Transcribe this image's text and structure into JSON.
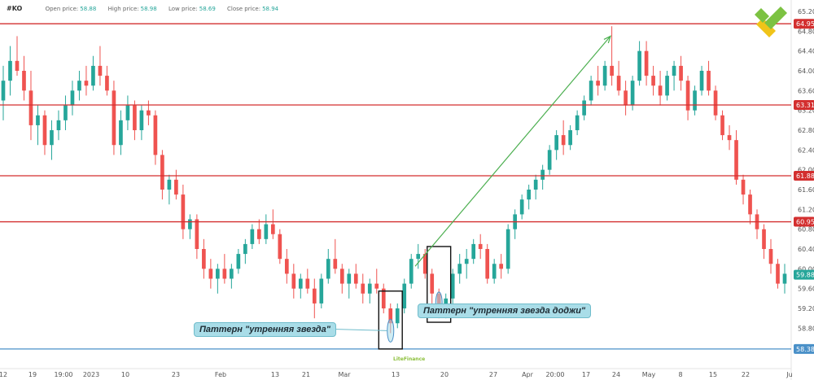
{
  "header": {
    "symbol": "#KO",
    "open_label": "Open price:",
    "open_value": "58.88",
    "high_label": "High price:",
    "high_value": "58.98",
    "low_label": "Low price:",
    "low_value": "58.69",
    "close_label": "Close price:",
    "close_value": "58.94"
  },
  "annotations": {
    "morning_star": "Паттерн \"утренняя звезда\"",
    "morning_star_doji": "Паттерн \"утренняя звезда доджи\""
  },
  "watermark": "LiteFinance",
  "chart_data": {
    "type": "candlestick",
    "ylim": [
      58.0,
      65.2
    ],
    "price_ticks": [
      58.8,
      59.2,
      59.6,
      60.0,
      60.4,
      60.8,
      61.2,
      61.6,
      62.0,
      62.4,
      62.8,
      63.2,
      63.6,
      64.0,
      64.4,
      64.8,
      65.2
    ],
    "x_labels": [
      "12",
      "19",
      "19:00",
      "2023",
      "10",
      "23",
      "Feb",
      "13",
      "21",
      "Mar",
      "13",
      "20",
      "27",
      "Apr",
      "20:00",
      "17",
      "24",
      "May",
      "8",
      "15",
      "22",
      "Ju"
    ],
    "horizontal_levels": [
      {
        "value": 64.95,
        "label": "64.95",
        "color": "#d32f2f"
      },
      {
        "value": 63.31,
        "label": "63.31",
        "color": "#d32f2f"
      },
      {
        "value": 61.88,
        "label": "61.88",
        "color": "#d32f2f"
      },
      {
        "value": 60.95,
        "label": "60.95",
        "color": "#d32f2f"
      },
      {
        "value": 58.38,
        "label": "58.38",
        "color": "#4a90c8"
      }
    ],
    "current_price": {
      "value": 59.88,
      "label": "59.88",
      "color": "#26a69a"
    },
    "colors": {
      "up": "#26a69a",
      "down": "#ef5350",
      "arrow": "#4caf50"
    },
    "trend_arrow": {
      "from_price": 60.05,
      "to_price": 64.7
    },
    "candles": [
      [
        63.4,
        64.1,
        63.0,
        63.8
      ],
      [
        63.8,
        64.5,
        63.5,
        64.2
      ],
      [
        64.2,
        64.7,
        63.9,
        64.0
      ],
      [
        64.0,
        64.3,
        63.4,
        63.6
      ],
      [
        63.6,
        64.0,
        62.6,
        62.9
      ],
      [
        62.9,
        63.3,
        62.5,
        63.1
      ],
      [
        63.1,
        63.2,
        62.3,
        62.5
      ],
      [
        62.5,
        63.0,
        62.2,
        62.8
      ],
      [
        62.8,
        63.2,
        62.6,
        63.0
      ],
      [
        63.0,
        63.5,
        62.8,
        63.3
      ],
      [
        63.3,
        63.8,
        63.1,
        63.6
      ],
      [
        63.6,
        64.0,
        63.4,
        63.8
      ],
      [
        63.8,
        64.1,
        63.5,
        63.7
      ],
      [
        63.7,
        64.3,
        63.6,
        64.1
      ],
      [
        64.1,
        64.5,
        63.7,
        63.9
      ],
      [
        63.9,
        64.1,
        63.5,
        63.6
      ],
      [
        63.6,
        63.8,
        62.3,
        62.5
      ],
      [
        62.5,
        63.2,
        62.3,
        63.0
      ],
      [
        63.0,
        63.5,
        62.8,
        63.3
      ],
      [
        63.3,
        63.4,
        62.6,
        62.8
      ],
      [
        62.8,
        63.3,
        62.6,
        63.2
      ],
      [
        63.2,
        63.4,
        62.9,
        63.1
      ],
      [
        63.1,
        63.2,
        62.1,
        62.3
      ],
      [
        62.3,
        62.4,
        61.4,
        61.6
      ],
      [
        61.6,
        61.9,
        61.3,
        61.8
      ],
      [
        61.8,
        62.0,
        61.4,
        61.5
      ],
      [
        61.5,
        61.7,
        60.6,
        60.8
      ],
      [
        60.8,
        61.1,
        60.6,
        61.0
      ],
      [
        61.0,
        61.1,
        60.2,
        60.4
      ],
      [
        60.4,
        60.6,
        59.8,
        60.0
      ],
      [
        60.0,
        60.2,
        59.6,
        59.8
      ],
      [
        59.8,
        60.1,
        59.5,
        60.0
      ],
      [
        60.0,
        60.3,
        59.7,
        59.8
      ],
      [
        59.8,
        60.1,
        59.6,
        60.0
      ],
      [
        60.0,
        60.4,
        59.9,
        60.3
      ],
      [
        60.3,
        60.6,
        60.1,
        60.5
      ],
      [
        60.5,
        60.9,
        60.4,
        60.8
      ],
      [
        60.8,
        61.0,
        60.5,
        60.6
      ],
      [
        60.6,
        61.1,
        60.5,
        60.9
      ],
      [
        60.9,
        61.2,
        60.6,
        60.7
      ],
      [
        60.7,
        60.8,
        60.1,
        60.2
      ],
      [
        60.2,
        60.4,
        59.7,
        59.9
      ],
      [
        59.9,
        60.1,
        59.4,
        59.6
      ],
      [
        59.6,
        59.9,
        59.4,
        59.8
      ],
      [
        59.8,
        60.0,
        59.5,
        59.6
      ],
      [
        59.6,
        59.8,
        59.0,
        59.3
      ],
      [
        59.3,
        59.9,
        59.2,
        59.8
      ],
      [
        59.8,
        60.4,
        59.7,
        60.2
      ],
      [
        60.2,
        60.6,
        59.9,
        60.0
      ],
      [
        60.0,
        60.1,
        59.5,
        59.7
      ],
      [
        59.7,
        60.0,
        59.4,
        59.9
      ],
      [
        59.9,
        60.1,
        59.6,
        59.7
      ],
      [
        59.7,
        59.9,
        59.3,
        59.5
      ],
      [
        59.5,
        59.8,
        59.3,
        59.7
      ],
      [
        59.7,
        60.0,
        59.5,
        59.6
      ],
      [
        59.6,
        59.7,
        59.1,
        59.2
      ],
      [
        59.2,
        59.3,
        58.7,
        58.9
      ],
      [
        58.9,
        59.3,
        58.8,
        59.2
      ],
      [
        59.2,
        59.8,
        59.1,
        59.7
      ],
      [
        59.7,
        60.3,
        59.6,
        60.2
      ],
      [
        60.2,
        60.5,
        60.0,
        60.3
      ],
      [
        60.3,
        60.4,
        59.8,
        59.9
      ],
      [
        59.9,
        60.0,
        59.3,
        59.5
      ],
      [
        59.5,
        59.6,
        59.0,
        59.1
      ],
      [
        59.1,
        59.5,
        59.0,
        59.4
      ],
      [
        59.4,
        60.0,
        59.3,
        59.9
      ],
      [
        59.9,
        60.3,
        59.7,
        60.1
      ],
      [
        60.1,
        60.4,
        59.8,
        60.2
      ],
      [
        60.2,
        60.6,
        60.1,
        60.5
      ],
      [
        60.5,
        60.7,
        60.2,
        60.4
      ],
      [
        60.4,
        60.5,
        59.7,
        59.8
      ],
      [
        59.8,
        60.2,
        59.7,
        60.1
      ],
      [
        60.1,
        60.3,
        59.8,
        60.0
      ],
      [
        60.0,
        60.9,
        59.9,
        60.8
      ],
      [
        60.8,
        61.2,
        60.6,
        61.1
      ],
      [
        61.1,
        61.5,
        61.0,
        61.4
      ],
      [
        61.4,
        61.7,
        61.2,
        61.6
      ],
      [
        61.6,
        61.9,
        61.4,
        61.8
      ],
      [
        61.8,
        62.1,
        61.6,
        62.0
      ],
      [
        62.0,
        62.5,
        61.9,
        62.4
      ],
      [
        62.4,
        62.8,
        62.2,
        62.7
      ],
      [
        62.7,
        63.0,
        62.3,
        62.5
      ],
      [
        62.5,
        62.9,
        62.4,
        62.8
      ],
      [
        62.8,
        63.2,
        62.7,
        63.1
      ],
      [
        63.1,
        63.5,
        63.0,
        63.4
      ],
      [
        63.4,
        63.9,
        63.3,
        63.8
      ],
      [
        63.8,
        64.1,
        63.5,
        63.7
      ],
      [
        63.7,
        64.2,
        63.6,
        64.1
      ],
      [
        64.1,
        64.9,
        63.7,
        63.9
      ],
      [
        63.9,
        64.2,
        63.5,
        63.6
      ],
      [
        63.6,
        63.8,
        63.1,
        63.3
      ],
      [
        63.3,
        63.9,
        63.2,
        63.8
      ],
      [
        63.8,
        64.6,
        63.7,
        64.4
      ],
      [
        64.4,
        64.6,
        63.7,
        63.9
      ],
      [
        63.9,
        64.1,
        63.5,
        63.7
      ],
      [
        63.7,
        64.0,
        63.3,
        63.5
      ],
      [
        63.5,
        64.0,
        63.4,
        63.9
      ],
      [
        63.9,
        64.2,
        63.6,
        64.1
      ],
      [
        64.1,
        64.3,
        63.6,
        63.8
      ],
      [
        63.8,
        63.9,
        63.0,
        63.2
      ],
      [
        63.2,
        63.7,
        63.1,
        63.6
      ],
      [
        63.6,
        64.1,
        63.5,
        64.0
      ],
      [
        64.0,
        64.2,
        63.5,
        63.6
      ],
      [
        63.6,
        63.7,
        63.0,
        63.1
      ],
      [
        63.1,
        63.2,
        62.6,
        62.7
      ],
      [
        62.7,
        62.9,
        62.4,
        62.6
      ],
      [
        62.6,
        62.8,
        61.7,
        61.8
      ],
      [
        61.8,
        61.9,
        61.3,
        61.5
      ],
      [
        61.5,
        61.6,
        60.9,
        61.1
      ],
      [
        61.1,
        61.2,
        60.6,
        60.8
      ],
      [
        60.8,
        60.9,
        60.2,
        60.4
      ],
      [
        60.4,
        60.6,
        59.9,
        60.1
      ],
      [
        60.1,
        60.2,
        59.6,
        59.7
      ],
      [
        59.7,
        60.1,
        59.5,
        59.9
      ]
    ]
  }
}
